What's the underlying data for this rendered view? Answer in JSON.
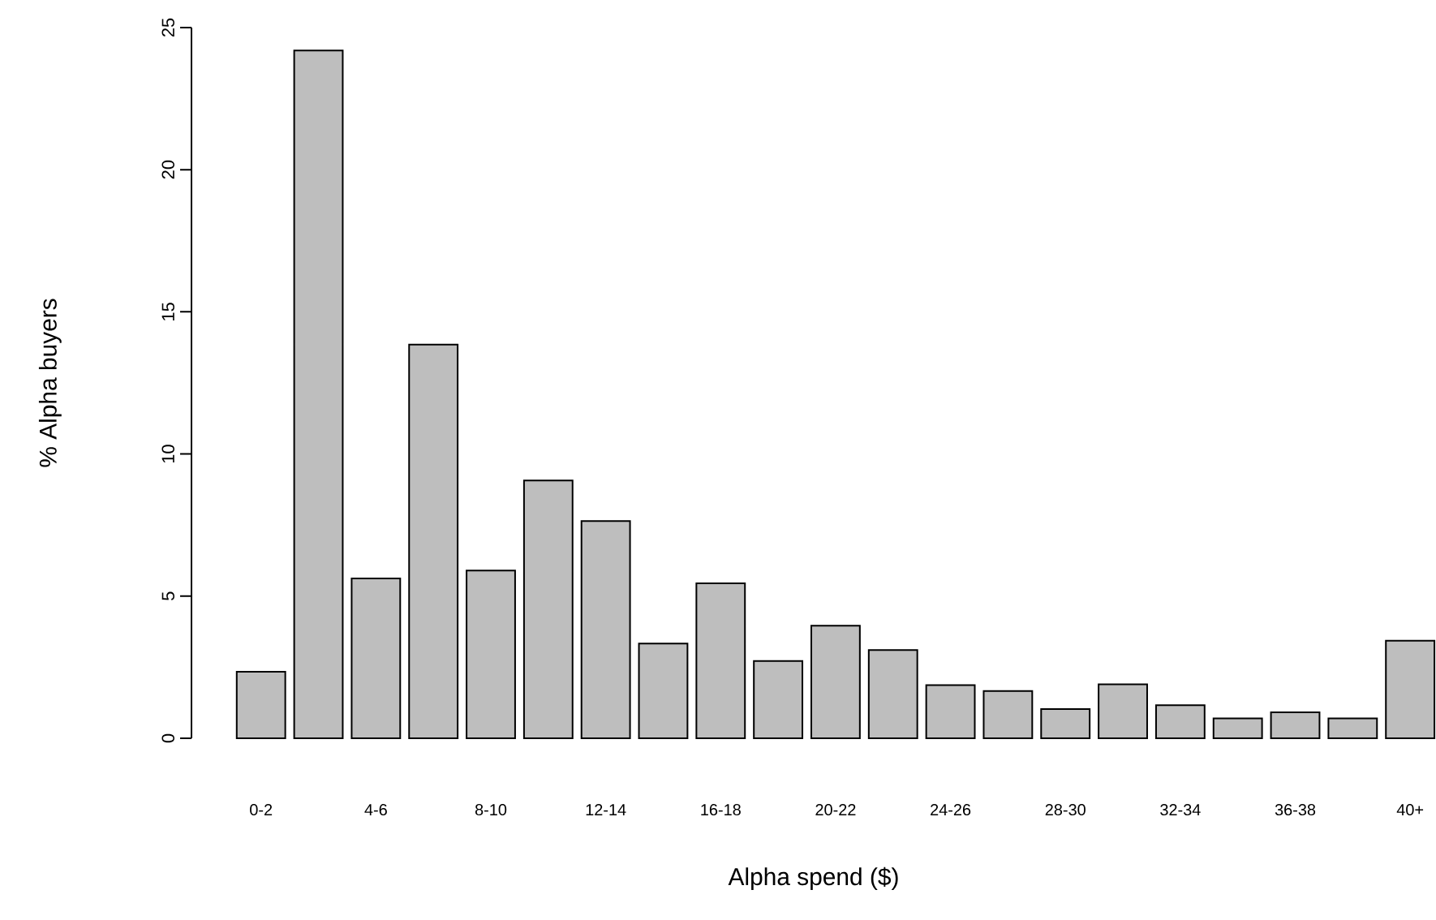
{
  "chart_data": {
    "type": "bar",
    "xlabel": "Alpha spend ($)",
    "ylabel": "% Alpha buyers",
    "categories": [
      "0-2",
      null,
      "4-6",
      null,
      "8-10",
      null,
      "12-14",
      null,
      "16-18",
      null,
      "20-22",
      null,
      "24-26",
      null,
      "28-30",
      null,
      "32-34",
      null,
      "36-38",
      null,
      "40+"
    ],
    "values": [
      2.34,
      24.19,
      5.62,
      13.85,
      5.9,
      9.07,
      7.64,
      3.33,
      5.45,
      2.72,
      3.96,
      3.1,
      1.87,
      1.66,
      1.03,
      1.9,
      1.16,
      0.7,
      0.91,
      0.7,
      3.43
    ],
    "color": "#bebebe",
    "ylim": [
      0,
      25
    ],
    "yticks": [
      0,
      5,
      10,
      15,
      20,
      25
    ]
  }
}
